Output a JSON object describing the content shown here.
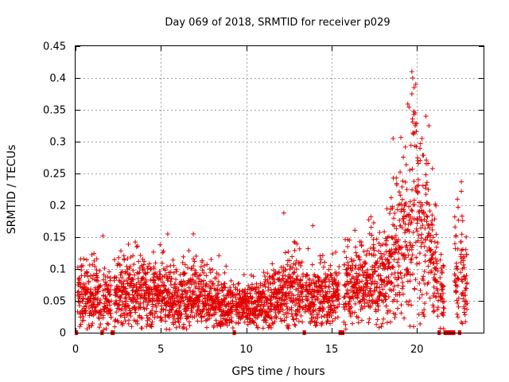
{
  "chart_data": {
    "type": "scatter",
    "title": "Day 069 of 2018, SRMTID for receiver p029",
    "xlabel": "GPS time / hours",
    "ylabel": "SRMTID / TECUs",
    "xlim": [
      0,
      23.9
    ],
    "ylim": [
      0,
      0.45
    ],
    "x_ticks": [
      0,
      5,
      10,
      15,
      20
    ],
    "y_ticks": [
      0,
      0.05,
      0.1,
      0.15,
      0.2,
      0.25,
      0.3,
      0.35,
      0.4,
      0.45
    ],
    "y_tick_labels": [
      "0",
      "0.05",
      "0.1",
      "0.15",
      "0.2",
      "0.25",
      "0.3",
      "0.35",
      "0.4",
      "0.45"
    ],
    "grid": true,
    "marker": "plus",
    "color": "#e00000",
    "series": [
      {
        "name": "SRMTID",
        "envelope_hours": [
          0,
          1,
          2,
          3,
          4,
          5,
          6,
          7,
          8,
          9,
          10,
          11,
          12,
          13,
          14,
          15,
          16,
          17,
          18,
          18.5,
          19,
          19.5,
          19.8,
          20,
          20.5,
          21,
          21.5,
          22,
          22.5,
          23
        ],
        "typical_values": [
          0.06,
          0.055,
          0.05,
          0.06,
          0.065,
          0.06,
          0.05,
          0.06,
          0.05,
          0.045,
          0.04,
          0.045,
          0.06,
          0.065,
          0.055,
          0.06,
          0.07,
          0.08,
          0.08,
          0.1,
          0.13,
          0.16,
          0.2,
          0.19,
          0.17,
          0.1,
          0.06,
          0.09,
          0.1,
          0.08
        ],
        "highlights": [
          {
            "x": 1.6,
            "y": 0.152
          },
          {
            "x": 5.4,
            "y": 0.155
          },
          {
            "x": 6.9,
            "y": 0.155
          },
          {
            "x": 8.4,
            "y": 0.121
          },
          {
            "x": 12.2,
            "y": 0.188
          },
          {
            "x": 13.9,
            "y": 0.168
          },
          {
            "x": 18.6,
            "y": 0.305
          },
          {
            "x": 19.7,
            "y": 0.41
          },
          {
            "x": 19.75,
            "y": 0.4
          },
          {
            "x": 19.7,
            "y": 0.375
          },
          {
            "x": 19.75,
            "y": 0.331
          },
          {
            "x": 20.7,
            "y": 0.325
          },
          {
            "x": 22.6,
            "y": 0.237
          },
          {
            "x": 22.6,
            "y": 0.222
          }
        ],
        "zero_gaps": [
          [
            0,
            0.1
          ],
          [
            1.5,
            1.6
          ],
          [
            2.1,
            2.25
          ],
          [
            9.25,
            9.35
          ],
          [
            13.35,
            13.45
          ],
          [
            15.45,
            15.7
          ],
          [
            21.25,
            21.35
          ],
          [
            21.6,
            22.2
          ],
          [
            22.45,
            22.55
          ]
        ]
      }
    ]
  }
}
